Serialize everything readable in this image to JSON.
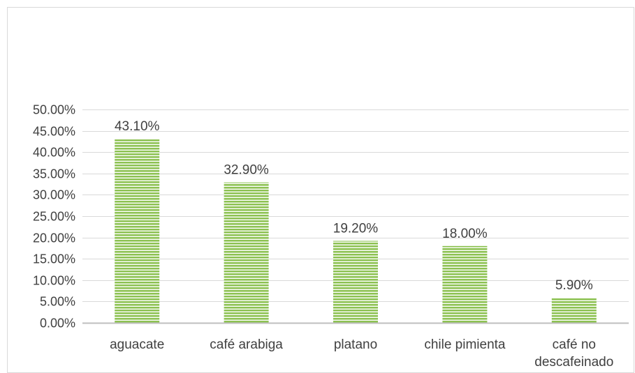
{
  "chart_data": {
    "type": "bar",
    "categories": [
      "aguacate",
      "café arabiga",
      "platano",
      "chile pimienta",
      "café no descafeinado"
    ],
    "category_lines": [
      [
        "aguacate"
      ],
      [
        "café arabiga"
      ],
      [
        "platano"
      ],
      [
        "chile pimienta"
      ],
      [
        "café no",
        "descafeinado"
      ]
    ],
    "values": [
      43.1,
      32.9,
      19.2,
      18.0,
      5.9
    ],
    "data_labels": [
      "43.10%",
      "32.90%",
      "19.20%",
      "18.00%",
      "5.90%"
    ],
    "y_ticks": [
      0,
      5,
      10,
      15,
      20,
      25,
      30,
      35,
      40,
      45,
      50
    ],
    "y_tick_labels": [
      "0.00%",
      "5.00%",
      "10.00%",
      "15.00%",
      "20.00%",
      "25.00%",
      "30.00%",
      "35.00%",
      "40.00%",
      "45.00%",
      "50.00%"
    ],
    "ylim": [
      0,
      50
    ],
    "grid": true,
    "legend": "none",
    "colors": {
      "bar_fill": "#8dc252",
      "bar_stripe": "#ffffff",
      "gridline": "#d9d9d9",
      "axis": "#bfbfbf",
      "text": "#404040"
    }
  }
}
